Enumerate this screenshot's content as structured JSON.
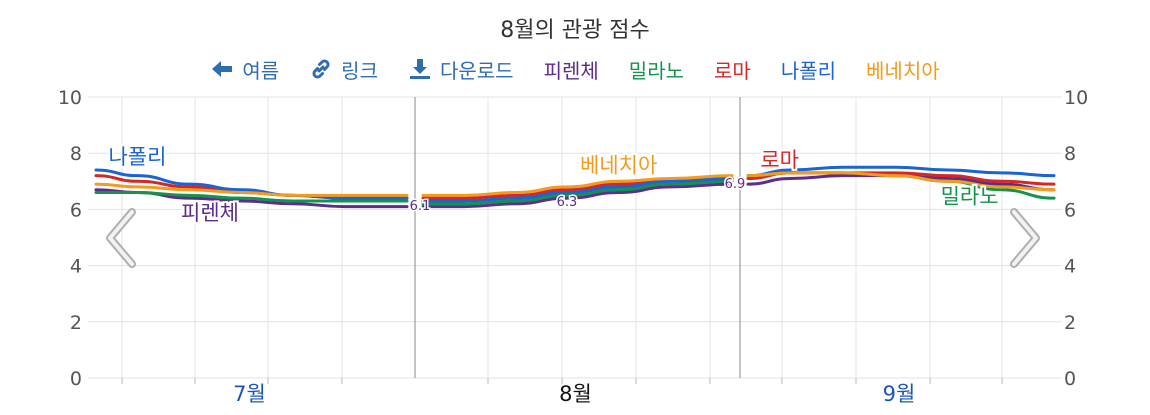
{
  "title": "8월의 관광 점수",
  "toolbar": {
    "summer": {
      "label": "여름",
      "icon": "arrow-left-icon"
    },
    "link": {
      "label": "링크",
      "icon": "link-icon"
    },
    "download": {
      "label": "다운로드",
      "icon": "download-icon"
    }
  },
  "colors": {
    "피렌체": "#5b2d8e",
    "밀라노": "#13944a",
    "로마": "#d62728",
    "나폴리": "#1a64d6",
    "베네치아": "#f29b1d",
    "toolbar": "#2f6db3",
    "grid": "#e3e3e3",
    "axis_text": "#555555",
    "month_label": "#1a56b8"
  },
  "chart_data": {
    "type": "line",
    "title": "8월의 관광 점수",
    "ylim": [
      0,
      10
    ],
    "y_ticks": [
      "0",
      "2",
      "4",
      "6",
      "8",
      "10"
    ],
    "x_months": [
      {
        "label": "7월",
        "current": false
      },
      {
        "label": "8월",
        "current": true
      },
      {
        "label": "9월",
        "current": false
      }
    ],
    "grid": true,
    "legend_position": "top",
    "segments": [
      {
        "month": "7월",
        "x": [
          1,
          5,
          10,
          15,
          20,
          25,
          31
        ],
        "series": [
          {
            "name": "나폴리",
            "values": [
              7.4,
              7.2,
              6.9,
              6.7,
              6.5,
              6.4,
              6.4
            ]
          },
          {
            "name": "로마",
            "values": [
              7.2,
              7.0,
              6.8,
              6.6,
              6.5,
              6.4,
              6.4
            ]
          },
          {
            "name": "베네치아",
            "values": [
              6.9,
              6.8,
              6.7,
              6.6,
              6.5,
              6.5,
              6.5
            ]
          },
          {
            "name": "밀라노",
            "values": [
              6.6,
              6.6,
              6.5,
              6.4,
              6.3,
              6.3,
              6.3
            ]
          },
          {
            "name": "피렌체",
            "values": [
              6.7,
              6.6,
              6.4,
              6.3,
              6.2,
              6.1,
              6.1
            ]
          }
        ]
      },
      {
        "month": "8월",
        "x": [
          1,
          5,
          10,
          15,
          20,
          25,
          31
        ],
        "series": [
          {
            "name": "나폴리",
            "values": [
              6.3,
              6.3,
              6.4,
              6.6,
              6.8,
              7.0,
              7.1
            ]
          },
          {
            "name": "로마",
            "values": [
              6.4,
              6.4,
              6.5,
              6.7,
              6.9,
              7.0,
              7.1
            ]
          },
          {
            "name": "베네치아",
            "values": [
              6.5,
              6.5,
              6.6,
              6.8,
              7.0,
              7.1,
              7.2
            ]
          },
          {
            "name": "밀라노",
            "values": [
              6.2,
              6.2,
              6.3,
              6.5,
              6.7,
              6.9,
              7.0
            ]
          },
          {
            "name": "피렌체",
            "values": [
              6.1,
              6.1,
              6.2,
              6.4,
              6.6,
              6.8,
              6.9
            ]
          }
        ]
      },
      {
        "month": "9월",
        "x": [
          1,
          5,
          10,
          15,
          20,
          25,
          30
        ],
        "series": [
          {
            "name": "나폴리",
            "values": [
              7.2,
              7.4,
              7.5,
              7.5,
              7.4,
              7.3,
              7.2
            ]
          },
          {
            "name": "로마",
            "values": [
              7.1,
              7.3,
              7.3,
              7.3,
              7.2,
              7.0,
              6.9
            ]
          },
          {
            "name": "베네치아",
            "values": [
              7.2,
              7.3,
              7.3,
              7.2,
              7.0,
              6.8,
              6.7
            ]
          },
          {
            "name": "밀라노",
            "values": [
              7.2,
              7.3,
              7.3,
              7.2,
              7.0,
              6.7,
              6.4
            ]
          },
          {
            "name": "피렌체",
            "values": [
              6.9,
              7.1,
              7.2,
              7.2,
              7.1,
              6.9,
              6.7
            ]
          }
        ]
      }
    ],
    "boundary_labels": [
      "6.1",
      "6.3",
      "6.9"
    ],
    "series_labels": [
      {
        "name": "나폴리",
        "month": "7월",
        "x": 5,
        "y": 7.9
      },
      {
        "name": "피렌체",
        "month": "7월",
        "x": 12,
        "y": 5.9
      },
      {
        "name": "베네치아",
        "month": "8월",
        "x": 20,
        "y": 7.6
      },
      {
        "name": "로마",
        "month": "9월",
        "x": 4,
        "y": 7.8
      },
      {
        "name": "밀라노",
        "month": "9월",
        "x": 22,
        "y": 6.5
      }
    ]
  }
}
